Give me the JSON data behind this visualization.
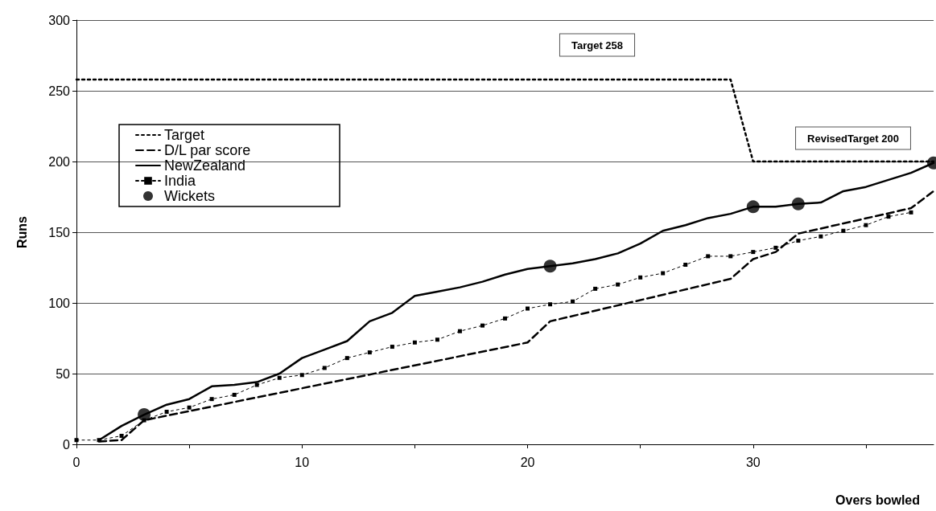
{
  "chart_data": {
    "type": "line",
    "xlabel": "Overs bowled",
    "ylabel": "Runs",
    "xlim": [
      0,
      38
    ],
    "ylim": [
      0,
      300
    ],
    "xticks": [
      0,
      {
        "value": 5,
        "label": null
      },
      10,
      {
        "value": 15,
        "label": null
      },
      20,
      {
        "value": 25,
        "label": null
      },
      30,
      {
        "value": 35,
        "label": null
      }
    ],
    "yticks": [
      0,
      50,
      100,
      150,
      200,
      250,
      300
    ],
    "grid": "y",
    "legend": "top left",
    "annotations": [
      "Target 258",
      "RevisedTarget 200"
    ],
    "series": [
      {
        "name": "Target",
        "color": "#000000",
        "line_style": "dotted",
        "marker": "none",
        "x": [
          0,
          29,
          30,
          38
        ],
        "values": [
          258,
          258,
          200,
          200
        ]
      },
      {
        "name": "D/L par score",
        "color": "#000000",
        "line_style": "dashed",
        "marker": "none",
        "x": [
          1,
          2,
          3,
          20,
          21,
          29,
          30,
          31,
          32,
          37,
          38
        ],
        "values": [
          2,
          3,
          17,
          72,
          87,
          117,
          131,
          136,
          149,
          167,
          179
        ]
      },
      {
        "name": "NewZealand",
        "color": "#000000",
        "line_style": "solid",
        "marker": "none",
        "x": [
          1,
          2,
          3,
          4,
          5,
          6,
          7,
          8,
          9,
          10,
          11,
          12,
          13,
          14,
          15,
          16,
          17,
          18,
          19,
          20,
          21,
          22,
          23,
          24,
          25,
          26,
          27,
          28,
          29,
          30,
          31,
          32,
          33,
          34,
          35,
          36,
          37,
          38
        ],
        "values": [
          3,
          13,
          21,
          28,
          32,
          41,
          42,
          44,
          50,
          61,
          67,
          73,
          87,
          93,
          105,
          108,
          111,
          115,
          120,
          124,
          126,
          128,
          131,
          135,
          142,
          151,
          155,
          160,
          163,
          168,
          168,
          170,
          171,
          179,
          182,
          187,
          192,
          199
        ]
      },
      {
        "name": "India",
        "color": "#000000",
        "line_style": "dotted",
        "marker": "square",
        "x": [
          0,
          1,
          2,
          3,
          4,
          5,
          6,
          7,
          8,
          9,
          10,
          11,
          12,
          13,
          14,
          15,
          16,
          17,
          18,
          19,
          20,
          21,
          22,
          23,
          24,
          25,
          26,
          27,
          28,
          29,
          30,
          31,
          32,
          33,
          34,
          35,
          36,
          37
        ],
        "values": [
          3,
          3,
          6,
          17,
          23,
          26,
          32,
          35,
          42,
          47,
          49,
          54,
          61,
          65,
          69,
          72,
          74,
          80,
          84,
          89,
          96,
          99,
          101,
          110,
          113,
          118,
          121,
          127,
          133,
          133,
          136,
          139,
          144,
          147,
          151,
          155,
          161,
          164
        ]
      },
      {
        "name": "Wickets",
        "type": "scatter",
        "color": "#000000",
        "marker": "circle",
        "x": [
          3,
          21,
          30,
          32,
          38
        ],
        "values": [
          21,
          126,
          168,
          170,
          199
        ]
      }
    ]
  }
}
